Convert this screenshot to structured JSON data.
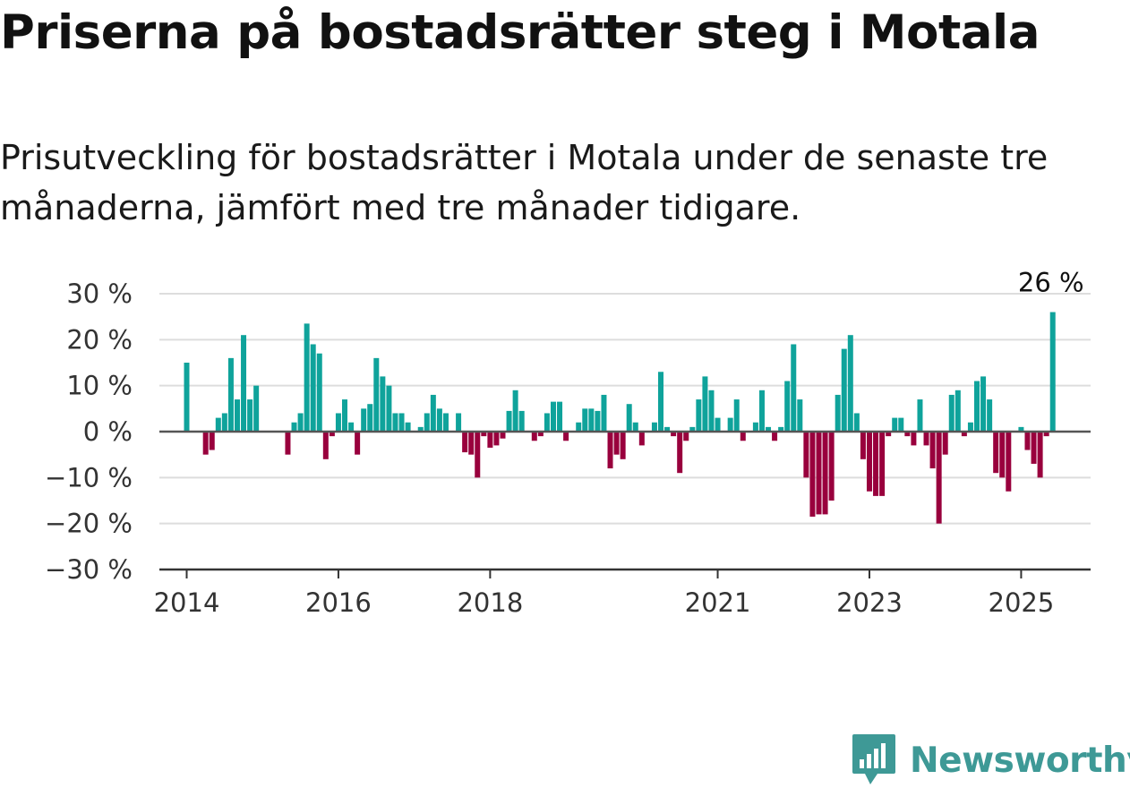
{
  "title": "Priserna på bostadsrätter steg i Motala",
  "subtitle": "Prisutveckling för bostadsrätter i Motala under de senaste tre månaderna, jämfört med tre månader tidigare.",
  "brand": {
    "name": "Newsworthy",
    "icon": "bar-chart-speech-bubble-icon",
    "color": "#3e9996"
  },
  "colors": {
    "positive": "#0fa39b",
    "negative": "#99003d",
    "grid": "#dddddd",
    "zero_line": "#555555",
    "axis": "#333333"
  },
  "chart_data": {
    "type": "bar",
    "x_unit": "month",
    "x_start": "2014-04",
    "ylim": [
      -30,
      30
    ],
    "yticks": [
      {
        "value": 30,
        "label": "30 %"
      },
      {
        "value": 20,
        "label": "20 %"
      },
      {
        "value": 10,
        "label": "10 %"
      },
      {
        "value": 0,
        "label": "0 %"
      },
      {
        "value": -10,
        "label": "−10 %"
      },
      {
        "value": -20,
        "label": "−20 %"
      },
      {
        "value": -30,
        "label": "−30 %"
      }
    ],
    "xticks": [
      {
        "label": "2014",
        "month_index": 0
      },
      {
        "label": "2016",
        "month_index": 24
      },
      {
        "label": "2018",
        "month_index": 48
      },
      {
        "label": "2021",
        "month_index": 84
      },
      {
        "label": "2023",
        "month_index": 108
      },
      {
        "label": "2025",
        "month_index": 132
      }
    ],
    "grid": true,
    "values": [
      15,
      null,
      null,
      -5,
      -4,
      3,
      4,
      16,
      7,
      21,
      7,
      10,
      null,
      null,
      null,
      null,
      -5,
      2,
      4,
      23.5,
      19,
      17,
      -6,
      -1,
      4,
      7,
      2,
      -5,
      5,
      6,
      16,
      12,
      10,
      4,
      4,
      2,
      null,
      1,
      4,
      8,
      5,
      4,
      null,
      4,
      -4.5,
      -5,
      -10,
      -1,
      -3.5,
      -3,
      -1.5,
      4.5,
      9,
      4.5,
      null,
      -2,
      -1,
      4,
      6.5,
      6.5,
      -2,
      null,
      2,
      5,
      5,
      4.5,
      8,
      -8,
      -5,
      -6,
      6,
      2,
      -3,
      null,
      2,
      13,
      1,
      -1,
      -9,
      -2,
      1,
      7,
      12,
      9,
      3,
      null,
      3,
      7,
      -2,
      null,
      2,
      9,
      1,
      -2,
      1,
      11,
      19,
      7,
      -10,
      -18.5,
      -18,
      -18,
      -15,
      8,
      18,
      21,
      4,
      -6,
      -13,
      -14,
      -14,
      -1,
      3,
      3,
      -1,
      -3,
      7,
      -3,
      -8,
      -20,
      -5,
      8,
      9,
      -1,
      2,
      11,
      12,
      7,
      -9,
      -10,
      -13,
      null,
      1,
      -4,
      -7,
      -10,
      -1,
      26
    ],
    "annotation": {
      "label": "26 %",
      "month_index": 137,
      "value": 26
    }
  }
}
